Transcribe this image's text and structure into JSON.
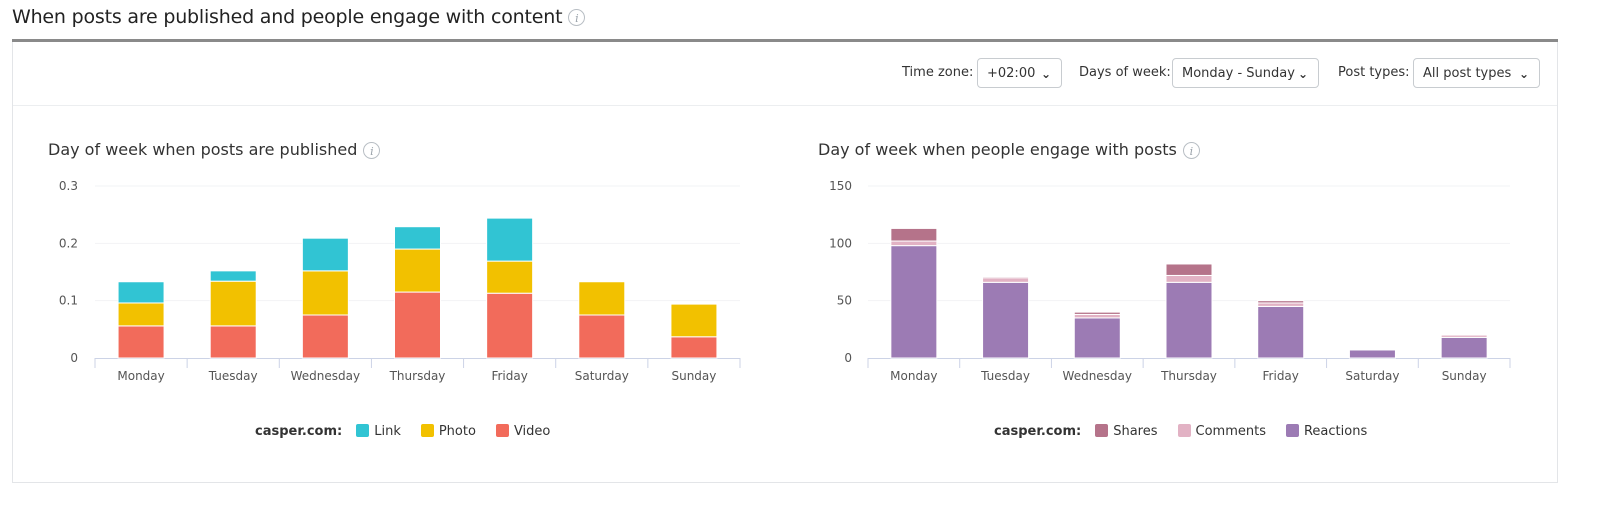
{
  "header": {
    "title": "When posts are published and people engage with content",
    "info_icon": "info-icon"
  },
  "filters": {
    "timezone": {
      "label": "Time zone:",
      "value": "+02:00"
    },
    "days": {
      "label": "Days of week:",
      "value": "Monday - Sunday"
    },
    "post_types": {
      "label": "Post types:",
      "value": "All post types"
    }
  },
  "chart_data": [
    {
      "type": "bar",
      "stacked": true,
      "title": "Day of week when posts are published",
      "categories": [
        "Monday",
        "Tuesday",
        "Wednesday",
        "Thursday",
        "Friday",
        "Saturday",
        "Sunday"
      ],
      "ylim": [
        0,
        0.3
      ],
      "yticks": [
        "0",
        "0.1",
        "0.2",
        "0.3"
      ],
      "grid": true,
      "legend": {
        "title": "casper.com:",
        "position": "bottom"
      },
      "series": [
        {
          "name": "Video",
          "color": "#f26b5b",
          "values": [
            0.056,
            0.056,
            0.075,
            0.115,
            0.113,
            0.075,
            0.037
          ]
        },
        {
          "name": "Photo",
          "color": "#f2c100",
          "values": [
            0.04,
            0.078,
            0.077,
            0.075,
            0.056,
            0.058,
            0.057
          ]
        },
        {
          "name": "Link",
          "color": "#31c4d3",
          "values": [
            0.037,
            0.018,
            0.057,
            0.039,
            0.075,
            0,
            0
          ]
        }
      ],
      "legend_order": [
        "Link",
        "Photo",
        "Video"
      ]
    },
    {
      "type": "bar",
      "stacked": true,
      "title": "Day of week when people engage with posts",
      "categories": [
        "Monday",
        "Tuesday",
        "Wednesday",
        "Thursday",
        "Friday",
        "Saturday",
        "Sunday"
      ],
      "ylim": [
        0,
        150
      ],
      "yticks": [
        "0",
        "50",
        "100",
        "150"
      ],
      "grid": true,
      "legend": {
        "title": "casper.com:",
        "position": "bottom"
      },
      "series": [
        {
          "name": "Reactions",
          "color": "#9c7bb4",
          "values": [
            98,
            66,
            35,
            66,
            45,
            7,
            18
          ]
        },
        {
          "name": "Comments",
          "color": "#e2b2c4",
          "values": [
            4,
            4,
            3,
            6,
            3,
            0,
            2
          ]
        },
        {
          "name": "Shares",
          "color": "#b5738a",
          "values": [
            11,
            1,
            2,
            10,
            2,
            0,
            0
          ]
        }
      ],
      "legend_order": [
        "Shares",
        "Comments",
        "Reactions"
      ]
    }
  ]
}
